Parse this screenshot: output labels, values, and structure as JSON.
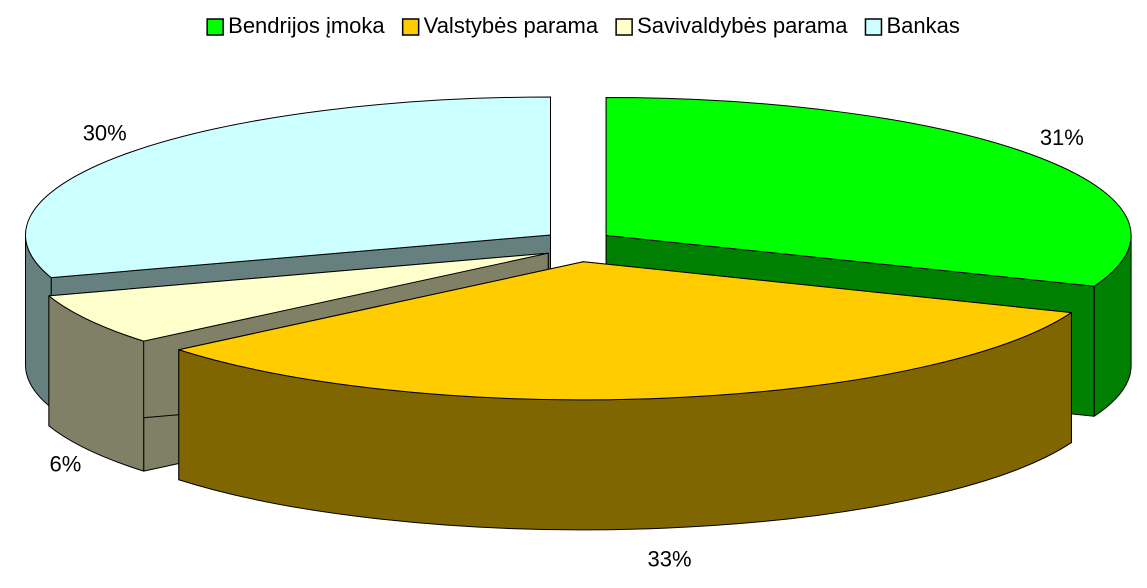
{
  "chart_data": {
    "type": "pie3d",
    "categories": [
      "Bendrijos įmoka",
      "Valstybės parama",
      "Savivaldybės parama",
      "Bankas"
    ],
    "values": [
      31,
      33,
      6,
      30
    ],
    "value_labels": [
      "31%",
      "33%",
      "6%",
      "30%"
    ],
    "colors": [
      "#00ff00",
      "#ffcc00",
      "#ffffcc",
      "#ccffff"
    ],
    "legend": "top",
    "exploded": true
  }
}
